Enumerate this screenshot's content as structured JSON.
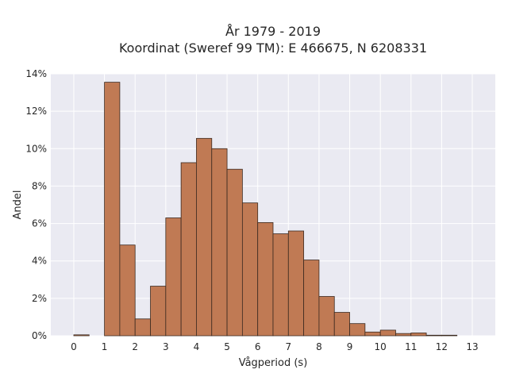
{
  "chart_data": {
    "type": "bar",
    "title_line1": "År 1979 - 2019",
    "title_line2": "Koordinat (Sweref 99 TM): E 466675, N 6208331",
    "xlabel": "Vågperiod (s)",
    "ylabel": "Andel",
    "xlim": [
      -0.75,
      13.75
    ],
    "ylim": [
      0,
      14
    ],
    "x_ticks": [
      "0",
      "1",
      "2",
      "3",
      "4",
      "5",
      "6",
      "7",
      "8",
      "9",
      "10",
      "11",
      "12",
      "13"
    ],
    "y_ticks": [
      "0%",
      "2%",
      "4%",
      "6%",
      "8%",
      "10%",
      "12%",
      "14%"
    ],
    "bin_width": 0.5,
    "bins": [
      {
        "start": 0.0,
        "value": 0.05
      },
      {
        "start": 1.0,
        "value": 13.55
      },
      {
        "start": 1.5,
        "value": 4.85
      },
      {
        "start": 2.0,
        "value": 0.9
      },
      {
        "start": 2.5,
        "value": 2.65
      },
      {
        "start": 3.0,
        "value": 6.3
      },
      {
        "start": 3.5,
        "value": 9.25
      },
      {
        "start": 4.0,
        "value": 10.55
      },
      {
        "start": 4.5,
        "value": 10.0
      },
      {
        "start": 5.0,
        "value": 8.9
      },
      {
        "start": 5.5,
        "value": 7.1
      },
      {
        "start": 6.0,
        "value": 6.05
      },
      {
        "start": 6.5,
        "value": 5.45
      },
      {
        "start": 7.0,
        "value": 5.6
      },
      {
        "start": 7.5,
        "value": 4.05
      },
      {
        "start": 8.0,
        "value": 2.1
      },
      {
        "start": 8.5,
        "value": 1.25
      },
      {
        "start": 9.0,
        "value": 0.65
      },
      {
        "start": 9.5,
        "value": 0.2
      },
      {
        "start": 10.0,
        "value": 0.3
      },
      {
        "start": 10.5,
        "value": 0.12
      },
      {
        "start": 11.0,
        "value": 0.15
      },
      {
        "start": 11.5,
        "value": 0.03
      },
      {
        "start": 12.0,
        "value": 0.03
      }
    ],
    "grid": true,
    "colors": {
      "bar_fill": "#c07a54",
      "bar_stroke": "#3b2a20",
      "plot_background": "#eaeaf2",
      "grid": "#ffffff"
    }
  }
}
